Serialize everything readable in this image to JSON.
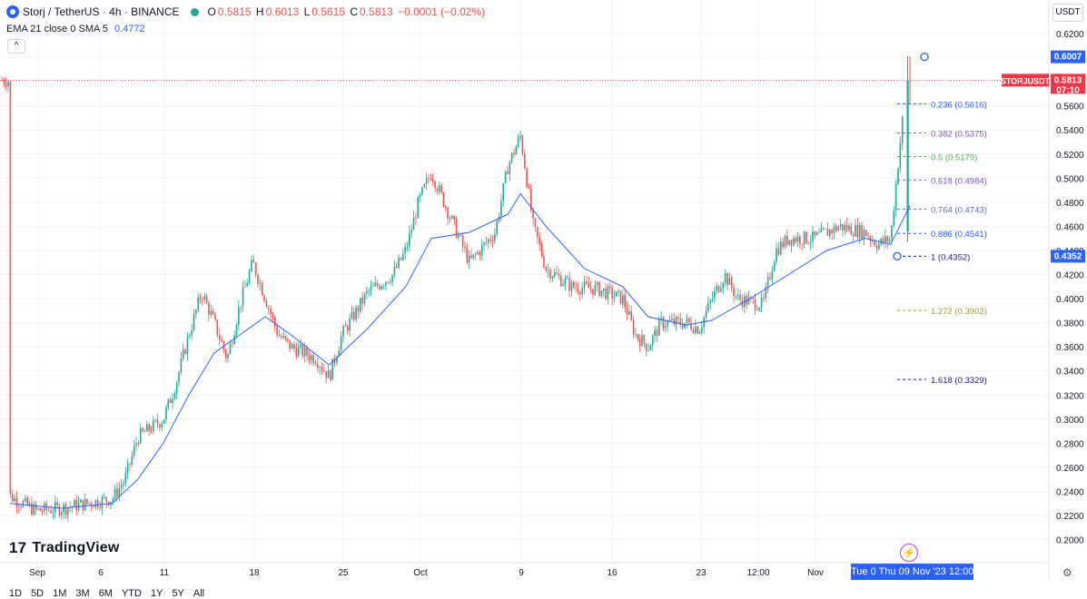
{
  "header": {
    "symbol": "Storj / TetherUS · 4h · BINANCE",
    "o_label": "O",
    "o_value": "0.5815",
    "h_label": "H",
    "h_value": "0.6013",
    "l_label": "L",
    "l_value": "0.5615",
    "c_label": "C",
    "c_value": "0.5813",
    "change": "−0.0001 (−0.02%)"
  },
  "indicator": {
    "label": "EMA 21 close 0 SMA 5",
    "value": "0.4772"
  },
  "currency_button": "USDT",
  "collapse_glyph": "^",
  "brand": {
    "mark": "17",
    "name": "TradingView"
  },
  "timeframes": [
    "1D",
    "5D",
    "1M",
    "3M",
    "6M",
    "YTD",
    "1Y",
    "5Y",
    "All"
  ],
  "cursor_time_label": "Tue 0   Thu 09 Nov '23   12:00",
  "colors": {
    "up": "#26a69a",
    "down": "#ef5350",
    "ema": "#2962ff",
    "price_tag": "#f23645",
    "axis_highlight": "#2962ff"
  },
  "chart_data": {
    "type": "candlestick",
    "y_axis": {
      "position": "right",
      "ticks": [
        "0.6200",
        "0.6000",
        "0.5800",
        "0.5600",
        "0.5400",
        "0.5200",
        "0.5000",
        "0.4800",
        "0.4600",
        "0.4400",
        "0.4200",
        "0.4000",
        "0.3800",
        "0.3600",
        "0.3400",
        "0.3200",
        "0.3000",
        "0.2800",
        "0.2600",
        "0.2400",
        "0.2200",
        "0.2000"
      ]
    },
    "x_axis": {
      "ticks": [
        "Sep",
        "6",
        "11",
        "18",
        "25",
        "Oct",
        "9",
        "16",
        "23",
        "12:00",
        "Nov"
      ]
    },
    "grid": true,
    "price_series": [
      [
        "Aug 31",
        0.236
      ],
      [
        "Sep 2",
        0.224
      ],
      [
        "Sep 4",
        0.226
      ],
      [
        "Sep 6",
        0.23
      ],
      [
        "Sep 8",
        0.234
      ],
      [
        "Sep 9",
        0.25
      ],
      [
        "Sep 10",
        0.285
      ],
      [
        "Sep 12",
        0.3
      ],
      [
        "Sep 13",
        0.33
      ],
      [
        "Sep 14",
        0.37
      ],
      [
        "Sep 15",
        0.405
      ],
      [
        "Sep 16",
        0.38
      ],
      [
        "Sep 17",
        0.35
      ],
      [
        "Sep 18",
        0.395
      ],
      [
        "Sep 19",
        0.43
      ],
      [
        "Sep 20",
        0.4
      ],
      [
        "Sep 21",
        0.37
      ],
      [
        "Sep 22",
        0.36
      ],
      [
        "Sep 24",
        0.35
      ],
      [
        "Sep 25",
        0.335
      ],
      [
        "Sep 26",
        0.37
      ],
      [
        "Sep 28",
        0.405
      ],
      [
        "Sep 30",
        0.42
      ],
      [
        "Oct 1",
        0.44
      ],
      [
        "Oct 2",
        0.48
      ],
      [
        "Oct 3",
        0.505
      ],
      [
        "Oct 4",
        0.48
      ],
      [
        "Oct 5",
        0.455
      ],
      [
        "Oct 6",
        0.43
      ],
      [
        "Oct 8",
        0.455
      ],
      [
        "Oct 9",
        0.51
      ],
      [
        "Oct 10",
        0.535
      ],
      [
        "Oct 11",
        0.46
      ],
      [
        "Oct 12",
        0.425
      ],
      [
        "Oct 14",
        0.41
      ],
      [
        "Oct 16",
        0.408
      ],
      [
        "Oct 18",
        0.4
      ],
      [
        "Oct 19",
        0.37
      ],
      [
        "Oct 20",
        0.36
      ],
      [
        "Oct 21",
        0.38
      ],
      [
        "Oct 23",
        0.38
      ],
      [
        "Oct 24",
        0.375
      ],
      [
        "Oct 25",
        0.4
      ],
      [
        "Oct 26",
        0.42
      ],
      [
        "Oct 27",
        0.4
      ],
      [
        "Oct 29",
        0.395
      ],
      [
        "Oct 30",
        0.44
      ],
      [
        "Oct 31",
        0.45
      ],
      [
        "Nov 2",
        0.45
      ],
      [
        "Nov 4",
        0.46
      ],
      [
        "Nov 6",
        0.455
      ],
      [
        "Nov 7",
        0.445
      ],
      [
        "Nov 8",
        0.45
      ],
      [
        "Nov 9",
        0.58
      ],
      [
        "Nov 9",
        0.5813
      ]
    ],
    "ema_series": [
      [
        "Aug 31",
        0.23
      ],
      [
        "Sep 4",
        0.226
      ],
      [
        "Sep 8",
        0.23
      ],
      [
        "Sep 10",
        0.25
      ],
      [
        "Sep 12",
        0.28
      ],
      [
        "Sep 14",
        0.32
      ],
      [
        "Sep 16",
        0.355
      ],
      [
        "Sep 18",
        0.37
      ],
      [
        "Sep 20",
        0.385
      ],
      [
        "Sep 22",
        0.37
      ],
      [
        "Sep 25",
        0.345
      ],
      [
        "Sep 28",
        0.375
      ],
      [
        "Oct 1",
        0.41
      ],
      [
        "Oct 3",
        0.45
      ],
      [
        "Oct 6",
        0.455
      ],
      [
        "Oct 9",
        0.47
      ],
      [
        "Oct 10",
        0.487
      ],
      [
        "Oct 12",
        0.46
      ],
      [
        "Oct 15",
        0.425
      ],
      [
        "Oct 18",
        0.41
      ],
      [
        "Oct 20",
        0.385
      ],
      [
        "Oct 23",
        0.378
      ],
      [
        "Oct 25",
        0.382
      ],
      [
        "Oct 28",
        0.4
      ],
      [
        "Oct 31",
        0.42
      ],
      [
        "Nov 3",
        0.44
      ],
      [
        "Nov 6",
        0.45
      ],
      [
        "Nov 8",
        0.445
      ],
      [
        "Nov 9",
        0.4772
      ]
    ],
    "last_price_label": {
      "symbol": "STORJUSDT",
      "price": "0.5813",
      "countdown": "07:10"
    },
    "crosshair_price": "0.6007",
    "fib_low_price": "0.4352",
    "fibonacci": [
      {
        "label": "0.236 (0.5616)",
        "value": 0.5616,
        "color": "#2962ff"
      },
      {
        "label": "0.382 (0.5375)",
        "value": 0.5375,
        "color": "#7e57c2"
      },
      {
        "label": "0.5 (0.5179)",
        "value": 0.5179,
        "color": "#4caf50"
      },
      {
        "label": "0.618 (0.4984)",
        "value": 0.4984,
        "color": "#7e57c2"
      },
      {
        "label": "0.764 (0.4743)",
        "value": 0.4743,
        "color": "#5c6bc0"
      },
      {
        "label": "0.886 (0.4541)",
        "value": 0.4541,
        "color": "#2962ff"
      },
      {
        "label": "1 (0.4352)",
        "value": 0.4352,
        "color": "#1a237e"
      },
      {
        "label": "1.272 (0.3902)",
        "value": 0.3902,
        "color": "#9e9d24"
      },
      {
        "label": "1.618 (0.3329)",
        "value": 0.3329,
        "color": "#1a237e"
      }
    ]
  }
}
